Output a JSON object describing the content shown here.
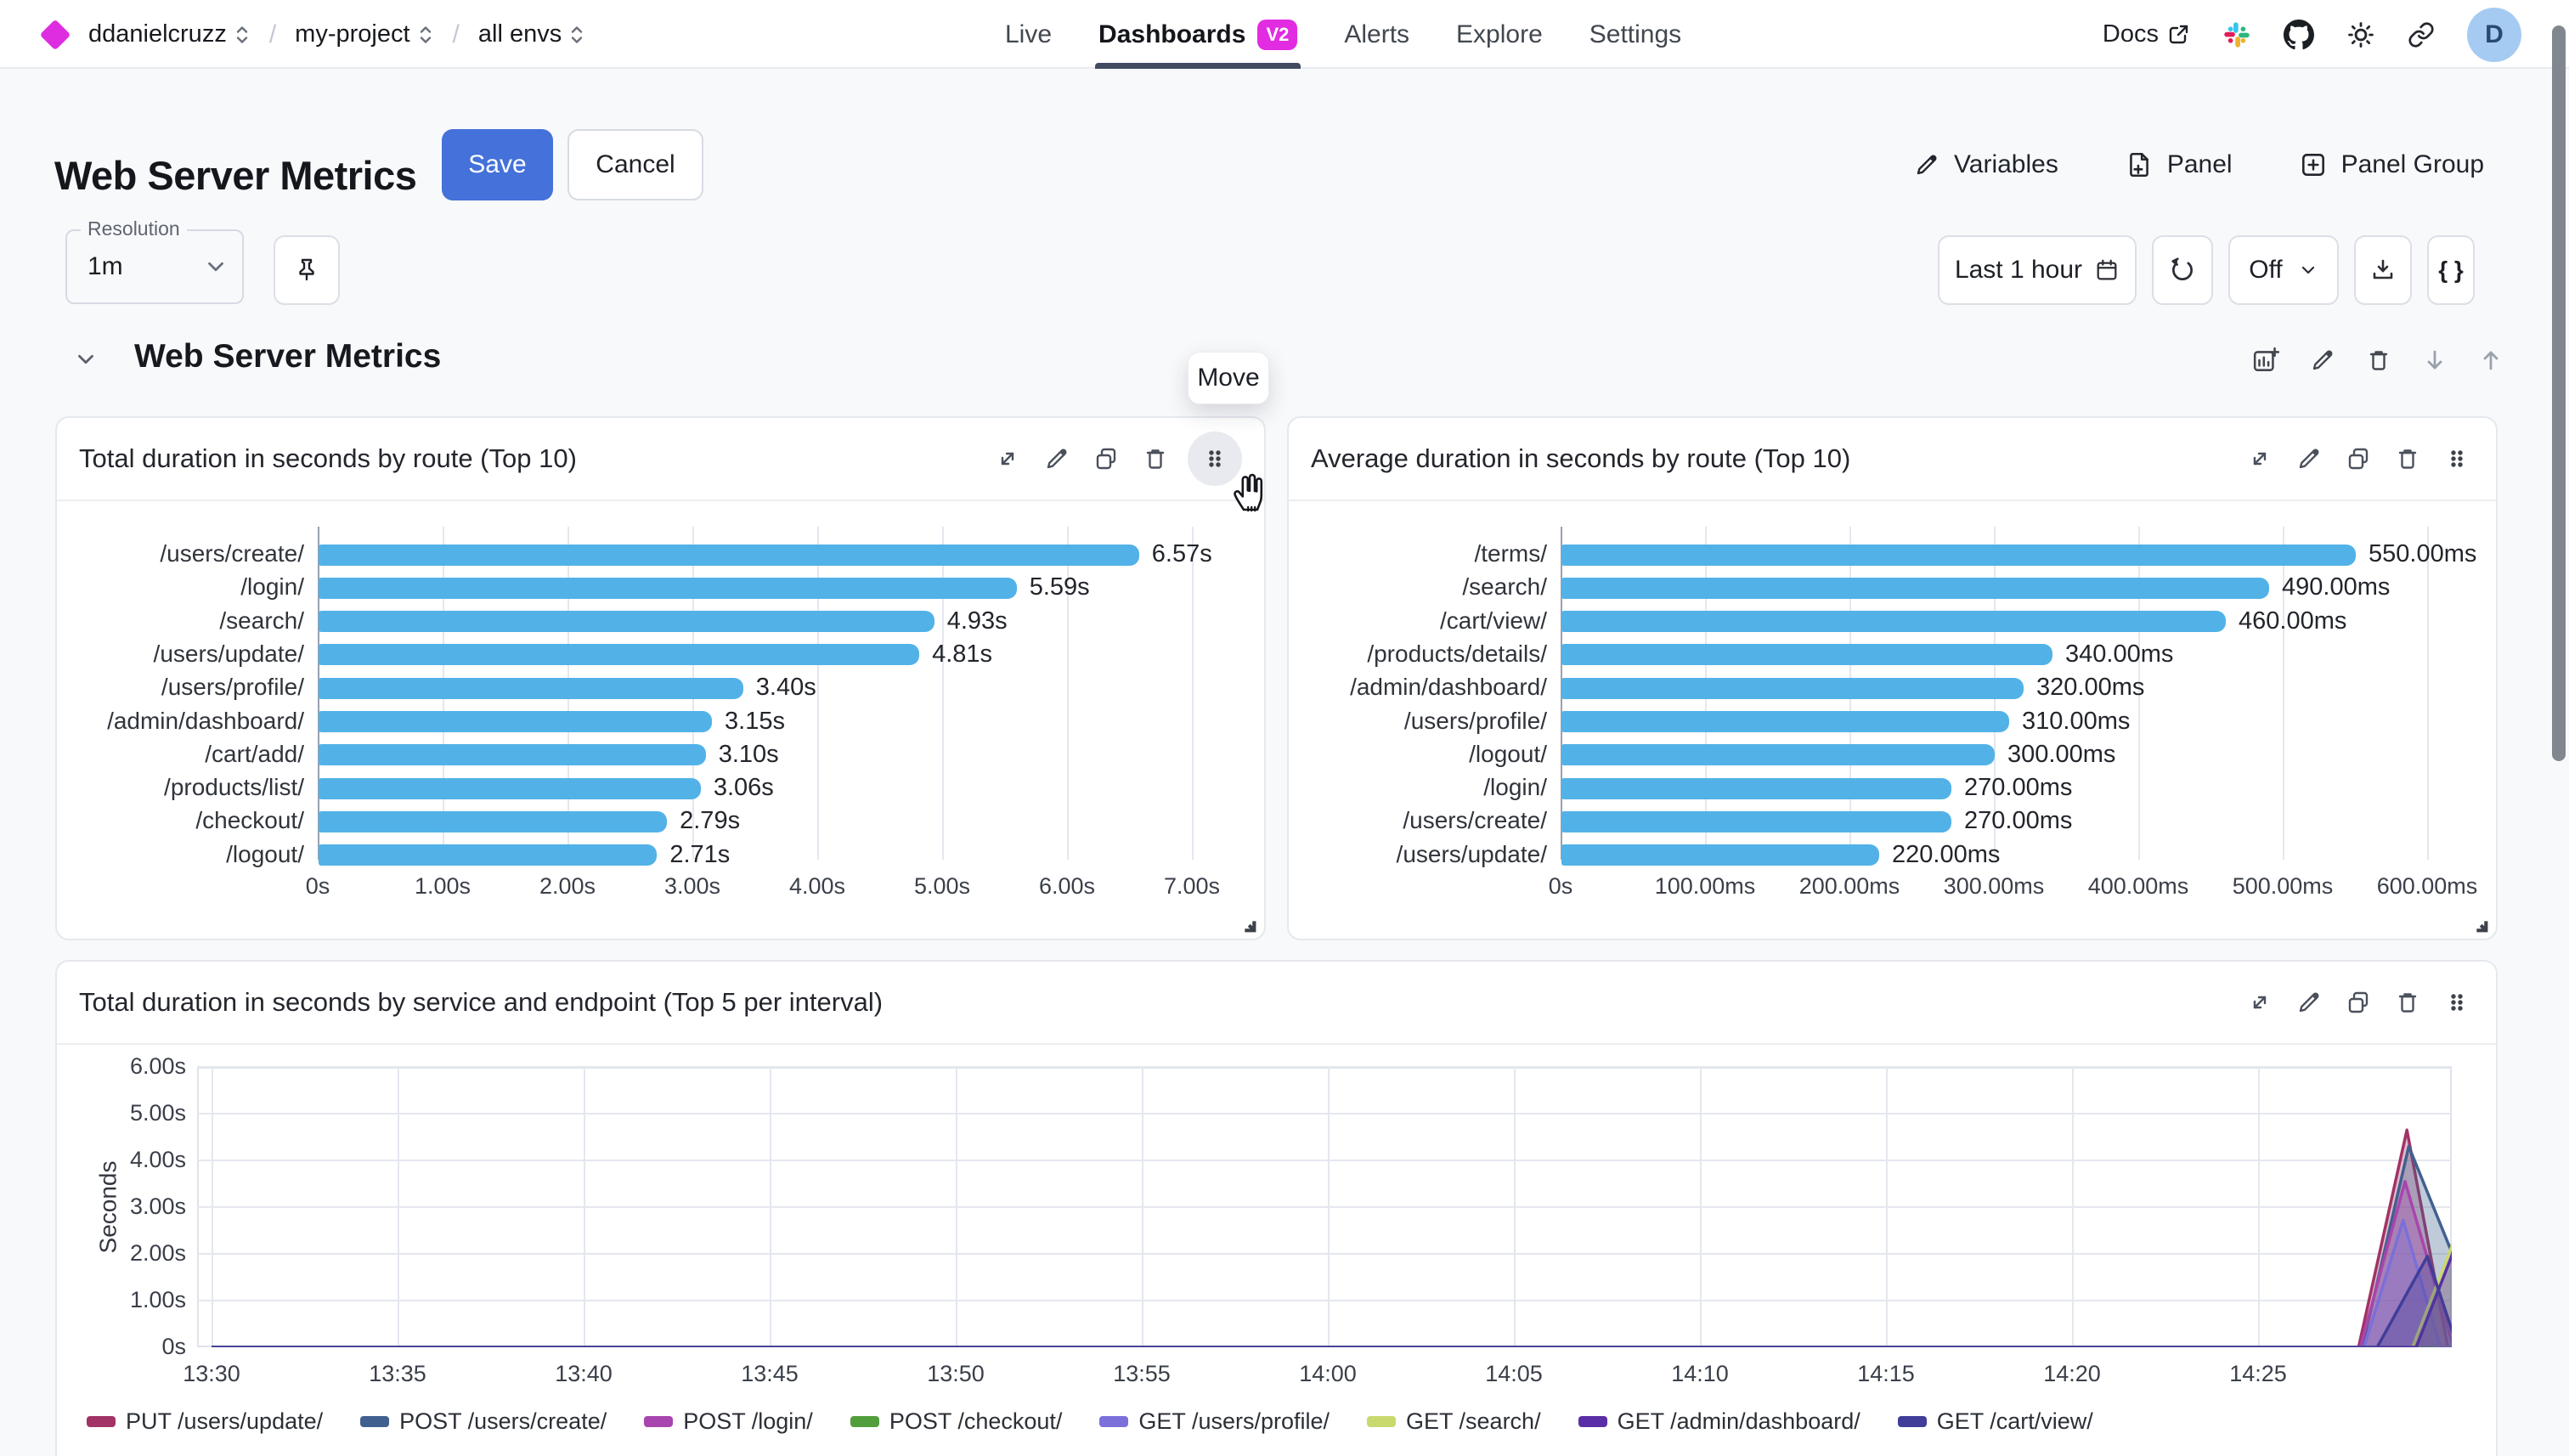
{
  "topbar": {
    "breadcrumb": {
      "org": "ddanielcruzz",
      "project": "my-project",
      "environment": "all envs",
      "separator": "/"
    },
    "nav": [
      {
        "label": "Live",
        "active": false
      },
      {
        "label": "Dashboards",
        "badge": "V2",
        "active": true
      },
      {
        "label": "Alerts",
        "active": false
      },
      {
        "label": "Explore",
        "active": false
      },
      {
        "label": "Settings",
        "active": false
      }
    ],
    "docs_label": "Docs",
    "avatar_initial": "D"
  },
  "header": {
    "title": "Web Server Metrics",
    "save_label": "Save",
    "cancel_label": "Cancel",
    "actions": [
      {
        "label": "Variables"
      },
      {
        "label": "Panel"
      },
      {
        "label": "Panel Group"
      }
    ]
  },
  "toolbar": {
    "resolution_label": "Resolution",
    "resolution_value": "1m",
    "time_range": "Last 1 hour",
    "refresh_interval": "Off",
    "code_button": "{ }"
  },
  "section": {
    "title": "Web Server Metrics"
  },
  "move_tooltip": "Move",
  "colors": {
    "accent_magenta": "#de2ce0",
    "primary_blue": "#4471da",
    "bar_blue": "#52b2e7",
    "nav_underline": "#414c61",
    "avatar_bg": "#a5cbf2"
  },
  "chart_data": [
    {
      "type": "bar",
      "orientation": "horizontal",
      "title": "Total duration in seconds by route (Top 10)",
      "unit": "s",
      "bar_color": "#52b2e7",
      "grid": true,
      "xlim": [
        0,
        7
      ],
      "categories": [
        "/users/create/",
        "/login/",
        "/search/",
        "/users/update/",
        "/users/profile/",
        "/admin/dashboard/",
        "/cart/add/",
        "/products/list/",
        "/checkout/",
        "/logout/"
      ],
      "values": [
        6.57,
        5.59,
        4.93,
        4.81,
        3.4,
        3.15,
        3.1,
        3.06,
        2.79,
        2.71
      ],
      "value_labels": [
        "6.57s",
        "5.59s",
        "4.93s",
        "4.81s",
        "3.40s",
        "3.15s",
        "3.10s",
        "3.06s",
        "2.79s",
        "2.71s"
      ],
      "x_ticks": [
        {
          "label": "0s",
          "value": 0
        },
        {
          "label": "1.00s",
          "value": 1
        },
        {
          "label": "2.00s",
          "value": 2
        },
        {
          "label": "3.00s",
          "value": 3
        },
        {
          "label": "4.00s",
          "value": 4
        },
        {
          "label": "5.00s",
          "value": 5
        },
        {
          "label": "6.00s",
          "value": 6
        },
        {
          "label": "7.00s",
          "value": 7
        }
      ]
    },
    {
      "type": "bar",
      "orientation": "horizontal",
      "title": "Average duration in seconds by route (Top 10)",
      "unit": "ms",
      "bar_color": "#52b2e7",
      "grid": true,
      "xlim": [
        0,
        600
      ],
      "categories": [
        "/terms/",
        "/search/",
        "/cart/view/",
        "/products/details/",
        "/admin/dashboard/",
        "/users/profile/",
        "/logout/",
        "/login/",
        "/users/create/",
        "/users/update/"
      ],
      "values": [
        550,
        490,
        460,
        340,
        320,
        310,
        300,
        270,
        270,
        220
      ],
      "value_labels": [
        "550.00ms",
        "490.00ms",
        "460.00ms",
        "340.00ms",
        "320.00ms",
        "310.00ms",
        "300.00ms",
        "270.00ms",
        "270.00ms",
        "220.00ms"
      ],
      "x_ticks": [
        {
          "label": "0s",
          "value": 0
        },
        {
          "label": "100.00ms",
          "value": 100
        },
        {
          "label": "200.00ms",
          "value": 200
        },
        {
          "label": "300.00ms",
          "value": 300
        },
        {
          "label": "400.00ms",
          "value": 400
        },
        {
          "label": "500.00ms",
          "value": 500
        },
        {
          "label": "600.00ms",
          "value": 600
        }
      ]
    },
    {
      "type": "area",
      "title": "Total duration in seconds by service and endpoint (Top 5 per interval)",
      "ylabel": "Seconds",
      "ylim": [
        0,
        6
      ],
      "grid": true,
      "legend_position": "bottom",
      "y_ticks": [
        {
          "label": "0s",
          "value": 0
        },
        {
          "label": "1.00s",
          "value": 1
        },
        {
          "label": "2.00s",
          "value": 2
        },
        {
          "label": "3.00s",
          "value": 3
        },
        {
          "label": "4.00s",
          "value": 4
        },
        {
          "label": "5.00s",
          "value": 5
        },
        {
          "label": "6.00s",
          "value": 6
        }
      ],
      "x_ticks": [
        {
          "label": "13:30",
          "minute": 0
        },
        {
          "label": "13:35",
          "minute": 5
        },
        {
          "label": "13:40",
          "minute": 10
        },
        {
          "label": "13:45",
          "minute": 15
        },
        {
          "label": "13:50",
          "minute": 20
        },
        {
          "label": "13:55",
          "minute": 25
        },
        {
          "label": "14:00",
          "minute": 30
        },
        {
          "label": "14:05",
          "minute": 35
        },
        {
          "label": "14:10",
          "minute": 40
        },
        {
          "label": "14:15",
          "minute": 45
        },
        {
          "label": "14:20",
          "minute": 50
        },
        {
          "label": "14:25",
          "minute": 55
        }
      ],
      "x_range_minutes": [
        0,
        60.3
      ],
      "series": [
        {
          "name": "PUT /users/update/",
          "color": "#a13366",
          "points": [
            [
              0,
              0
            ],
            [
              57.7,
              0
            ],
            [
              59.0,
              4.65
            ],
            [
              60.1,
              0
            ],
            [
              60.3,
              0
            ]
          ]
        },
        {
          "name": "POST /users/create/",
          "color": "#41608f",
          "points": [
            [
              0,
              0
            ],
            [
              57.8,
              0
            ],
            [
              59.05,
              4.3
            ],
            [
              60.3,
              1.85
            ]
          ]
        },
        {
          "name": "POST /login/",
          "color": "#a845ae",
          "points": [
            [
              0,
              0
            ],
            [
              57.75,
              0
            ],
            [
              58.95,
              3.55
            ],
            [
              60.25,
              0
            ],
            [
              60.3,
              0
            ]
          ]
        },
        {
          "name": "POST /checkout/",
          "color": "#529e3c",
          "points": [
            [
              0,
              0
            ],
            [
              60.3,
              0
            ]
          ]
        },
        {
          "name": "GET /users/profile/",
          "color": "#7b6fd9",
          "points": [
            [
              0,
              0
            ],
            [
              57.85,
              0
            ],
            [
              58.9,
              2.72
            ],
            [
              59.9,
              0
            ],
            [
              60.3,
              0
            ]
          ]
        },
        {
          "name": "GET /search/",
          "color": "#c9d96e",
          "points": [
            [
              0,
              0
            ],
            [
              59.15,
              0
            ],
            [
              60.3,
              2.35
            ]
          ]
        },
        {
          "name": "GET /admin/dashboard/",
          "color": "#5a2ea6",
          "points": [
            [
              0,
              0
            ],
            [
              59.25,
              0
            ],
            [
              60.3,
              2.15
            ]
          ]
        },
        {
          "name": "GET /cart/view/",
          "color": "#413d99",
          "points": [
            [
              0,
              0
            ],
            [
              58.2,
              0
            ],
            [
              59.55,
              1.95
            ],
            [
              60.3,
              0.15
            ]
          ]
        }
      ]
    }
  ]
}
